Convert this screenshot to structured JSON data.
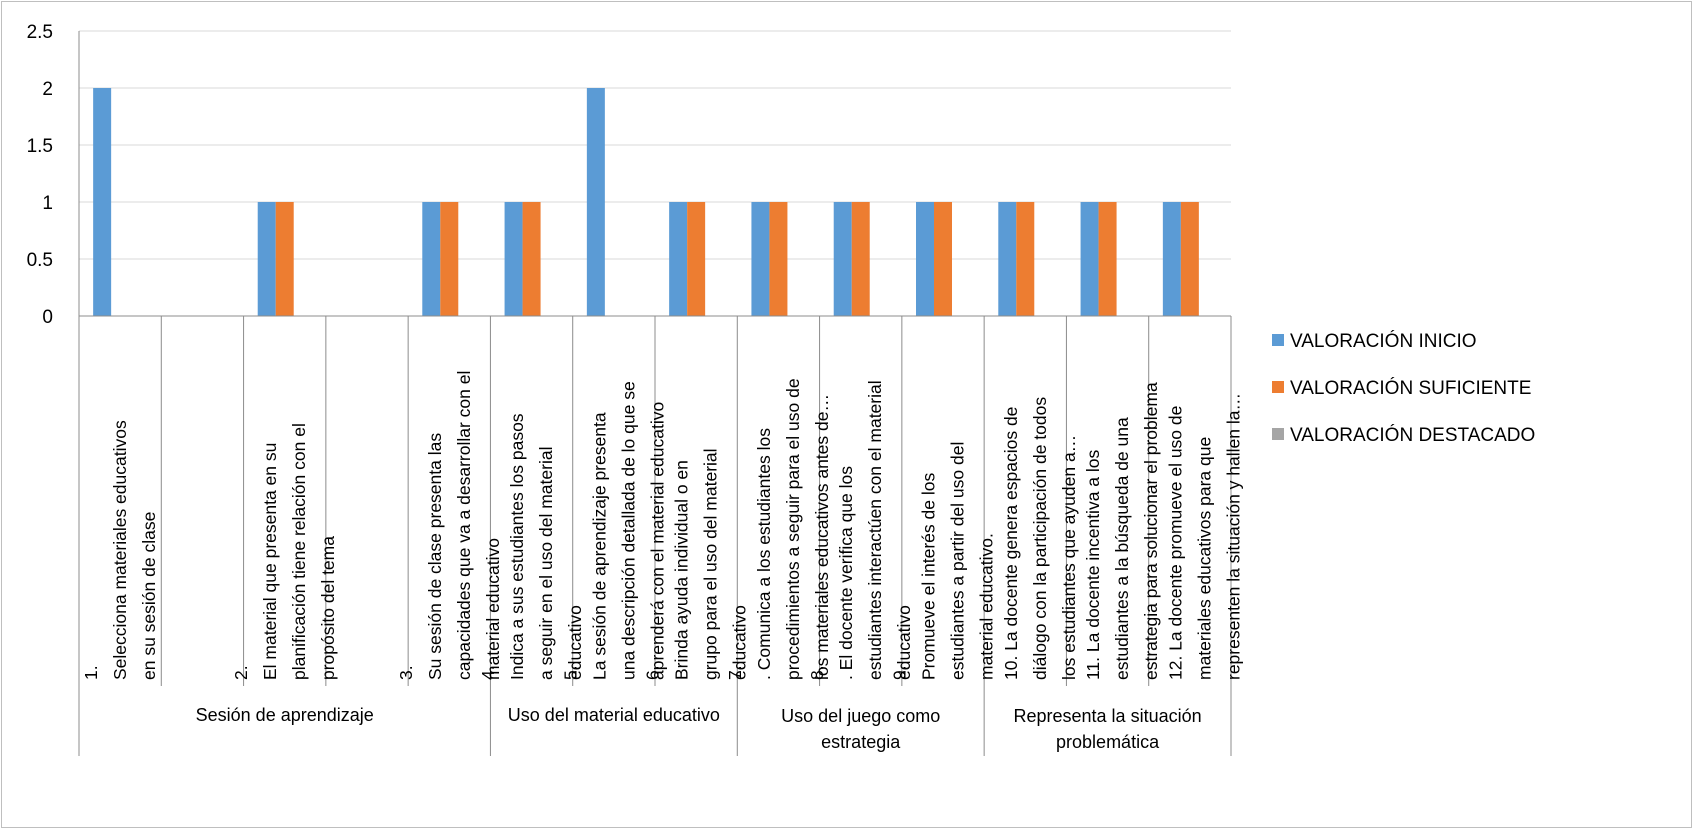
{
  "chart_data": {
    "type": "bar",
    "title": "",
    "xlabel": "",
    "ylabel": "",
    "ylim": [
      0,
      2.5
    ],
    "yticks": [
      "0",
      "0.5",
      "1",
      "1.5",
      "2",
      "2.5"
    ],
    "grid": true,
    "legend_position": "right",
    "categories": [
      [
        "1.",
        "Selecciona materiales educativos",
        "en su sesión de clase"
      ],
      [],
      [
        "2.",
        "El material que presenta en su",
        "planificación tiene relación con el",
        "propósito del tema"
      ],
      [],
      [
        "3.",
        "Su sesión de clase presenta las",
        "capacidades que va a desarrollar con el",
        "material educativo"
      ],
      [
        "4.",
        "Indica a sus estudiantes los pasos",
        "a seguir en el uso del material",
        "educativo"
      ],
      [
        "5.",
        "La sesión de aprendizaje presenta",
        "una descripción detallada de lo que se",
        "aprenderá con el material educativo"
      ],
      [
        "6.",
        "Brinda ayuda individual o en",
        "grupo para el uso del material",
        "educativo"
      ],
      [
        "7.",
        ". Comunica a los estudiantes los",
        "procedimientos a seguir para el uso de",
        "los materiales educativos antes de…"
      ],
      [
        "8.",
        ". El docente verifica que los",
        "estudiantes interactúen con el material",
        "educativo"
      ],
      [
        "9.",
        "Promueve el interés de los",
        "estudiantes a partir del uso del",
        "material educativo."
      ],
      [
        "",
        "10. La docente genera espacios de",
        "diálogo con la participación de todos",
        "los estudiantes que ayuden a…"
      ],
      [
        "",
        "11. La docente incentiva a los",
        "estudiantes a la búsqueda de una",
        "estrategia para solucionar el problema"
      ],
      [
        "",
        "12. La docente promueve el uso de",
        "materiales educativos para que",
        "representen la situación y hallen la…"
      ]
    ],
    "groups": [
      {
        "label": [
          "Sesión de aprendizaje"
        ],
        "start": 0,
        "end": 5
      },
      {
        "label": [
          "Uso del material educativo"
        ],
        "start": 5,
        "end": 8
      },
      {
        "label": [
          "Uso del juego como",
          "estrategia"
        ],
        "start": 8,
        "end": 11
      },
      {
        "label": [
          "Representa la situación",
          "problemática"
        ],
        "start": 11,
        "end": 14
      }
    ],
    "series": [
      {
        "name": "VALORACIÓN INICIO",
        "color": "#5b9bd5",
        "values": [
          2,
          null,
          1,
          null,
          1,
          1,
          2,
          1,
          1,
          1,
          1,
          1,
          1,
          1
        ]
      },
      {
        "name": "VALORACIÓN SUFICIENTE",
        "color": "#ed7d31",
        "values": [
          null,
          null,
          1,
          null,
          1,
          1,
          null,
          1,
          1,
          1,
          1,
          1,
          1,
          1
        ]
      },
      {
        "name": "VALORACIÓN DESTACADO",
        "color": "#a5a5a5",
        "values": [
          null,
          null,
          null,
          null,
          null,
          null,
          null,
          null,
          null,
          null,
          null,
          null,
          null,
          null
        ]
      }
    ]
  },
  "style": {
    "grid_color": "#d9d9d9",
    "axis_color": "#8c8c8c",
    "border_color": "#bfbfbf"
  }
}
